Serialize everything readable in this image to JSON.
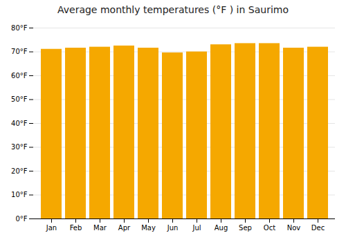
{
  "chart_data": {
    "type": "bar",
    "title": "Average monthly temperatures (°F ) in Saurimo",
    "categories": [
      "Jan",
      "Feb",
      "Mar",
      "Apr",
      "May",
      "Jun",
      "Jul",
      "Aug",
      "Sep",
      "Oct",
      "Nov",
      "Dec"
    ],
    "values": [
      71.1,
      71.6,
      72.0,
      72.5,
      71.6,
      69.6,
      70.0,
      73.0,
      73.5,
      73.5,
      71.6,
      72.0
    ],
    "color": "#F5A800",
    "ylim": [
      0,
      80
    ],
    "yticks": [
      {
        "value": 0,
        "label": "0°F"
      },
      {
        "value": 10,
        "label": "10°F"
      },
      {
        "value": 20,
        "label": "20°F"
      },
      {
        "value": 30,
        "label": "30°F"
      },
      {
        "value": 40,
        "label": "40°F"
      },
      {
        "value": 50,
        "label": "50°F"
      },
      {
        "value": 60,
        "label": "60°F"
      },
      {
        "value": 70,
        "label": "70°F"
      },
      {
        "value": 80,
        "label": "80°F"
      }
    ],
    "grid": true
  }
}
